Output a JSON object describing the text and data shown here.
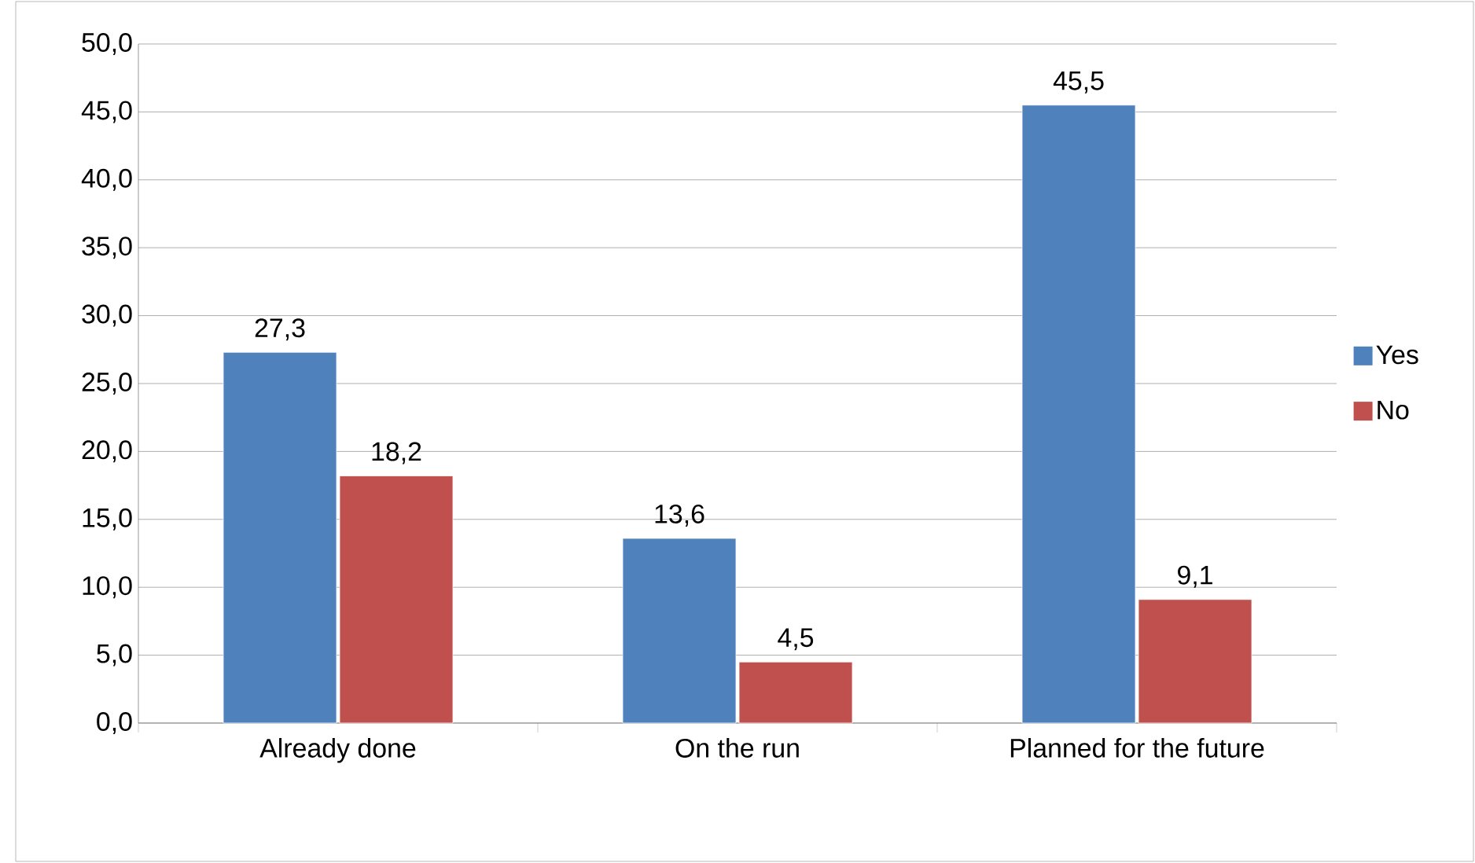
{
  "chart_data": {
    "type": "bar",
    "categories": [
      "Already done",
      "On the run",
      "Planned for the future"
    ],
    "series": [
      {
        "name": "Yes",
        "color": "#4f81bd",
        "values": [
          27.3,
          13.6,
          45.5
        ],
        "value_labels": [
          "27,3",
          "13,6",
          "45,5"
        ]
      },
      {
        "name": "No",
        "color": "#c0504d",
        "values": [
          18.2,
          4.5,
          9.1
        ],
        "value_labels": [
          "18,2",
          "4,5",
          "9,1"
        ]
      }
    ],
    "ylim": [
      0,
      50
    ],
    "yticks": [
      {
        "value": 0,
        "label": "0,0"
      },
      {
        "value": 5,
        "label": "5,0"
      },
      {
        "value": 10,
        "label": "10,0"
      },
      {
        "value": 15,
        "label": "15,0"
      },
      {
        "value": 20,
        "label": "20,0"
      },
      {
        "value": 25,
        "label": "25,0"
      },
      {
        "value": 30,
        "label": "30,0"
      },
      {
        "value": 35,
        "label": "35,0"
      },
      {
        "value": 40,
        "label": "40,0"
      },
      {
        "value": 45,
        "label": "45,0"
      },
      {
        "value": 50,
        "label": "50,0"
      }
    ],
    "grid": "y",
    "legend": "right"
  }
}
